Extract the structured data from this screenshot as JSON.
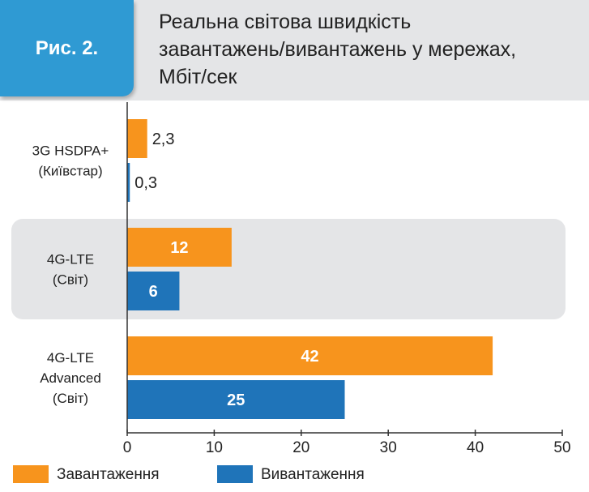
{
  "figure_label": "Рис. 2.",
  "title_lines": [
    "Реальна світова швидкість",
    "завантажень/вивантажень у мережах,",
    "Мбіт/сек"
  ],
  "colors": {
    "download": "#f7941d",
    "upload": "#1f74b9",
    "badge": "#2f9ad3",
    "highlight_band": "#e4e5e7"
  },
  "chart_data": {
    "type": "bar",
    "orientation": "horizontal",
    "title": "Реальна світова швидкість завантажень/вивантажень у мережах, Мбіт/сек",
    "categories": [
      [
        "3G HSDPA+",
        "(Київстар)"
      ],
      [
        "4G-LTE",
        "(Світ)"
      ],
      [
        "4G-LTE",
        "Advanced",
        "(Світ)"
      ]
    ],
    "series": [
      {
        "name": "Завантаження",
        "values": [
          2.3,
          12,
          42
        ],
        "labels": [
          "2,3",
          "12",
          "42"
        ]
      },
      {
        "name": "Вивантаження",
        "values": [
          0.3,
          6,
          25
        ],
        "labels": [
          "0,3",
          "6",
          "25"
        ]
      }
    ],
    "xlim": [
      0,
      50
    ],
    "xticks": [
      0,
      10,
      20,
      30,
      40,
      50
    ],
    "legend": "bottom-left",
    "highlighted_category": 1
  }
}
